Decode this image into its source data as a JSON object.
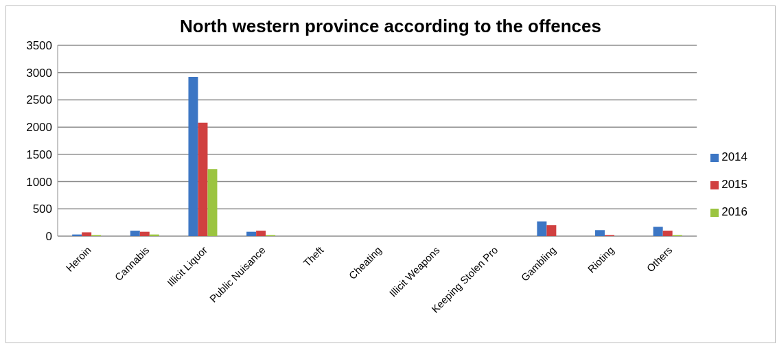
{
  "chart_data": {
    "type": "bar",
    "title": "North western province according to the offences",
    "categories": [
      "Heroin",
      "Cannabis",
      "Illicit Liquor",
      "Public Nuisance",
      "Theft",
      "Cheating",
      "Illicit Weapons",
      "Keeping Stolen Pro",
      "Gambling",
      "Rioting",
      "Others"
    ],
    "series": [
      {
        "name": "2014",
        "color": "#3c76c4",
        "values": [
          30,
          100,
          2920,
          80,
          0,
          0,
          0,
          0,
          270,
          110,
          170
        ]
      },
      {
        "name": "2015",
        "color": "#d04040",
        "values": [
          70,
          80,
          2080,
          100,
          0,
          0,
          0,
          0,
          200,
          20,
          100
        ]
      },
      {
        "name": "2016",
        "color": "#9bc440",
        "values": [
          20,
          30,
          1230,
          20,
          0,
          0,
          0,
          0,
          0,
          0,
          20
        ]
      }
    ],
    "ylim": [
      0,
      3500
    ],
    "yticks": [
      0,
      500,
      1000,
      1500,
      2000,
      2500,
      3000,
      3500
    ],
    "grid": "y",
    "legend": "right"
  }
}
